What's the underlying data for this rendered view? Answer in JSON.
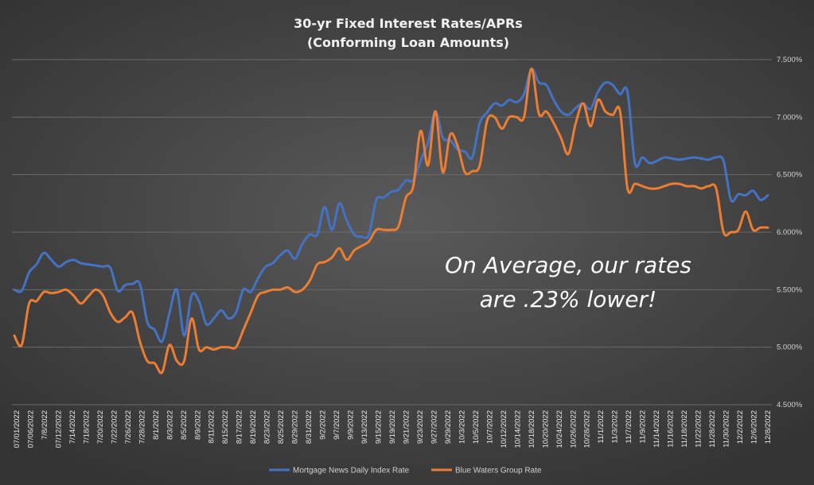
{
  "chart_data": {
    "type": "line",
    "title": [
      "30-yr Fixed Interest Rates/APRs",
      "(Conforming Loan Amounts)"
    ],
    "ylim": [
      4.5,
      7.5
    ],
    "y_ticks": [
      4.5,
      5.0,
      5.5,
      6.0,
      6.5,
      7.0,
      7.5
    ],
    "y_tick_labels": [
      "4.500%",
      "5.000%",
      "5.500%",
      "6.000%",
      "6.500%",
      "7.000%",
      "7.500%"
    ],
    "x_tick_labels": [
      "07/01/2022",
      "07/06/2022",
      "7/8/2022",
      "07/12/2022",
      "7/14/2022",
      "7/18/2022",
      "7/20/2022",
      "7/22/2022",
      "7/26/2022",
      "7/28/2022",
      "8/1/2022",
      "8/3/2022",
      "8/5/2022",
      "8/9/2022",
      "8/11/2022",
      "8/15/2022",
      "8/17/2022",
      "8/19/2022",
      "8/23/2022",
      "8/25/2022",
      "8/29/2022",
      "8/31/2022",
      "9/2/2022",
      "9/7/2022",
      "9/9/2022",
      "9/13/2022",
      "9/15/2022",
      "9/19/2022",
      "9/21/2022",
      "9/23/2022",
      "9/27/2022",
      "9/29/2022",
      "10/3/2022",
      "10/5/2022",
      "10/7/2022",
      "10/12/2022",
      "10/14/2022",
      "10/18/2022",
      "10/20/2022",
      "10/24/2022",
      "10/26/2022",
      "10/28/2022",
      "11/1/2022",
      "11/3/2022",
      "11/7/2022",
      "11/9/2022",
      "11/14/2022",
      "11/16/2022",
      "11/18/2022",
      "11/22/2022",
      "11/28/2022",
      "11/30/2022",
      "12/2/2022",
      "12/6/2022",
      "12/8/2022"
    ],
    "series": [
      {
        "name": "Mortgage News Daily Index Rate",
        "color": "#4472c4",
        "values": [
          5.5,
          5.49,
          5.65,
          5.72,
          5.82,
          5.76,
          5.7,
          5.74,
          5.76,
          5.73,
          5.72,
          5.71,
          5.7,
          5.69,
          5.49,
          5.54,
          5.55,
          5.55,
          5.22,
          5.15,
          5.05,
          5.3,
          5.5,
          5.1,
          5.45,
          5.4,
          5.2,
          5.25,
          5.32,
          5.25,
          5.3,
          5.5,
          5.48,
          5.6,
          5.7,
          5.73,
          5.8,
          5.84,
          5.77,
          5.9,
          5.98,
          5.98,
          6.22,
          6.02,
          6.25,
          6.1,
          5.98,
          5.96,
          5.98,
          6.28,
          6.3,
          6.35,
          6.37,
          6.45,
          6.45,
          6.62,
          6.78,
          7.05,
          6.82,
          6.8,
          6.72,
          6.7,
          6.65,
          6.95,
          7.04,
          7.12,
          7.1,
          7.15,
          7.13,
          7.2,
          7.42,
          7.3,
          7.28,
          7.15,
          7.05,
          7.02,
          7.08,
          7.12,
          7.07,
          7.22,
          7.3,
          7.28,
          7.2,
          7.22,
          6.6,
          6.65,
          6.6,
          6.62,
          6.65,
          6.64,
          6.63,
          6.64,
          6.65,
          6.64,
          6.63,
          6.65,
          6.62,
          6.28,
          6.33,
          6.32,
          6.36,
          6.28,
          6.32
        ]
      },
      {
        "name": "Blue Waters Group Rate",
        "color": "#ed7d31",
        "values": [
          5.1,
          5.02,
          5.38,
          5.4,
          5.48,
          5.47,
          5.48,
          5.5,
          5.45,
          5.38,
          5.44,
          5.5,
          5.45,
          5.3,
          5.22,
          5.26,
          5.3,
          5.05,
          4.88,
          4.86,
          4.78,
          5.02,
          4.88,
          4.88,
          5.25,
          4.98,
          5.0,
          4.98,
          5.0,
          5.0,
          5.0,
          5.15,
          5.3,
          5.45,
          5.48,
          5.5,
          5.5,
          5.52,
          5.48,
          5.5,
          5.58,
          5.72,
          5.74,
          5.78,
          5.86,
          5.76,
          5.84,
          5.88,
          5.92,
          6.02,
          6.02,
          6.02,
          6.05,
          6.3,
          6.4,
          6.88,
          6.58,
          7.05,
          6.52,
          6.85,
          6.75,
          6.52,
          6.53,
          6.58,
          6.97,
          7.0,
          6.9,
          7.0,
          7.0,
          7.0,
          7.42,
          7.03,
          7.05,
          6.95,
          6.82,
          6.68,
          6.95,
          7.12,
          6.92,
          7.15,
          7.05,
          7.02,
          7.05,
          6.38,
          6.42,
          6.4,
          6.38,
          6.38,
          6.4,
          6.42,
          6.42,
          6.4,
          6.4,
          6.38,
          6.4,
          6.38,
          6.0,
          6.0,
          6.02,
          6.18,
          6.02,
          6.04,
          6.04
        ]
      }
    ],
    "annotation": [
      "On Average, our rates",
      "are .23% lower!"
    ],
    "legend_position": "bottom"
  }
}
